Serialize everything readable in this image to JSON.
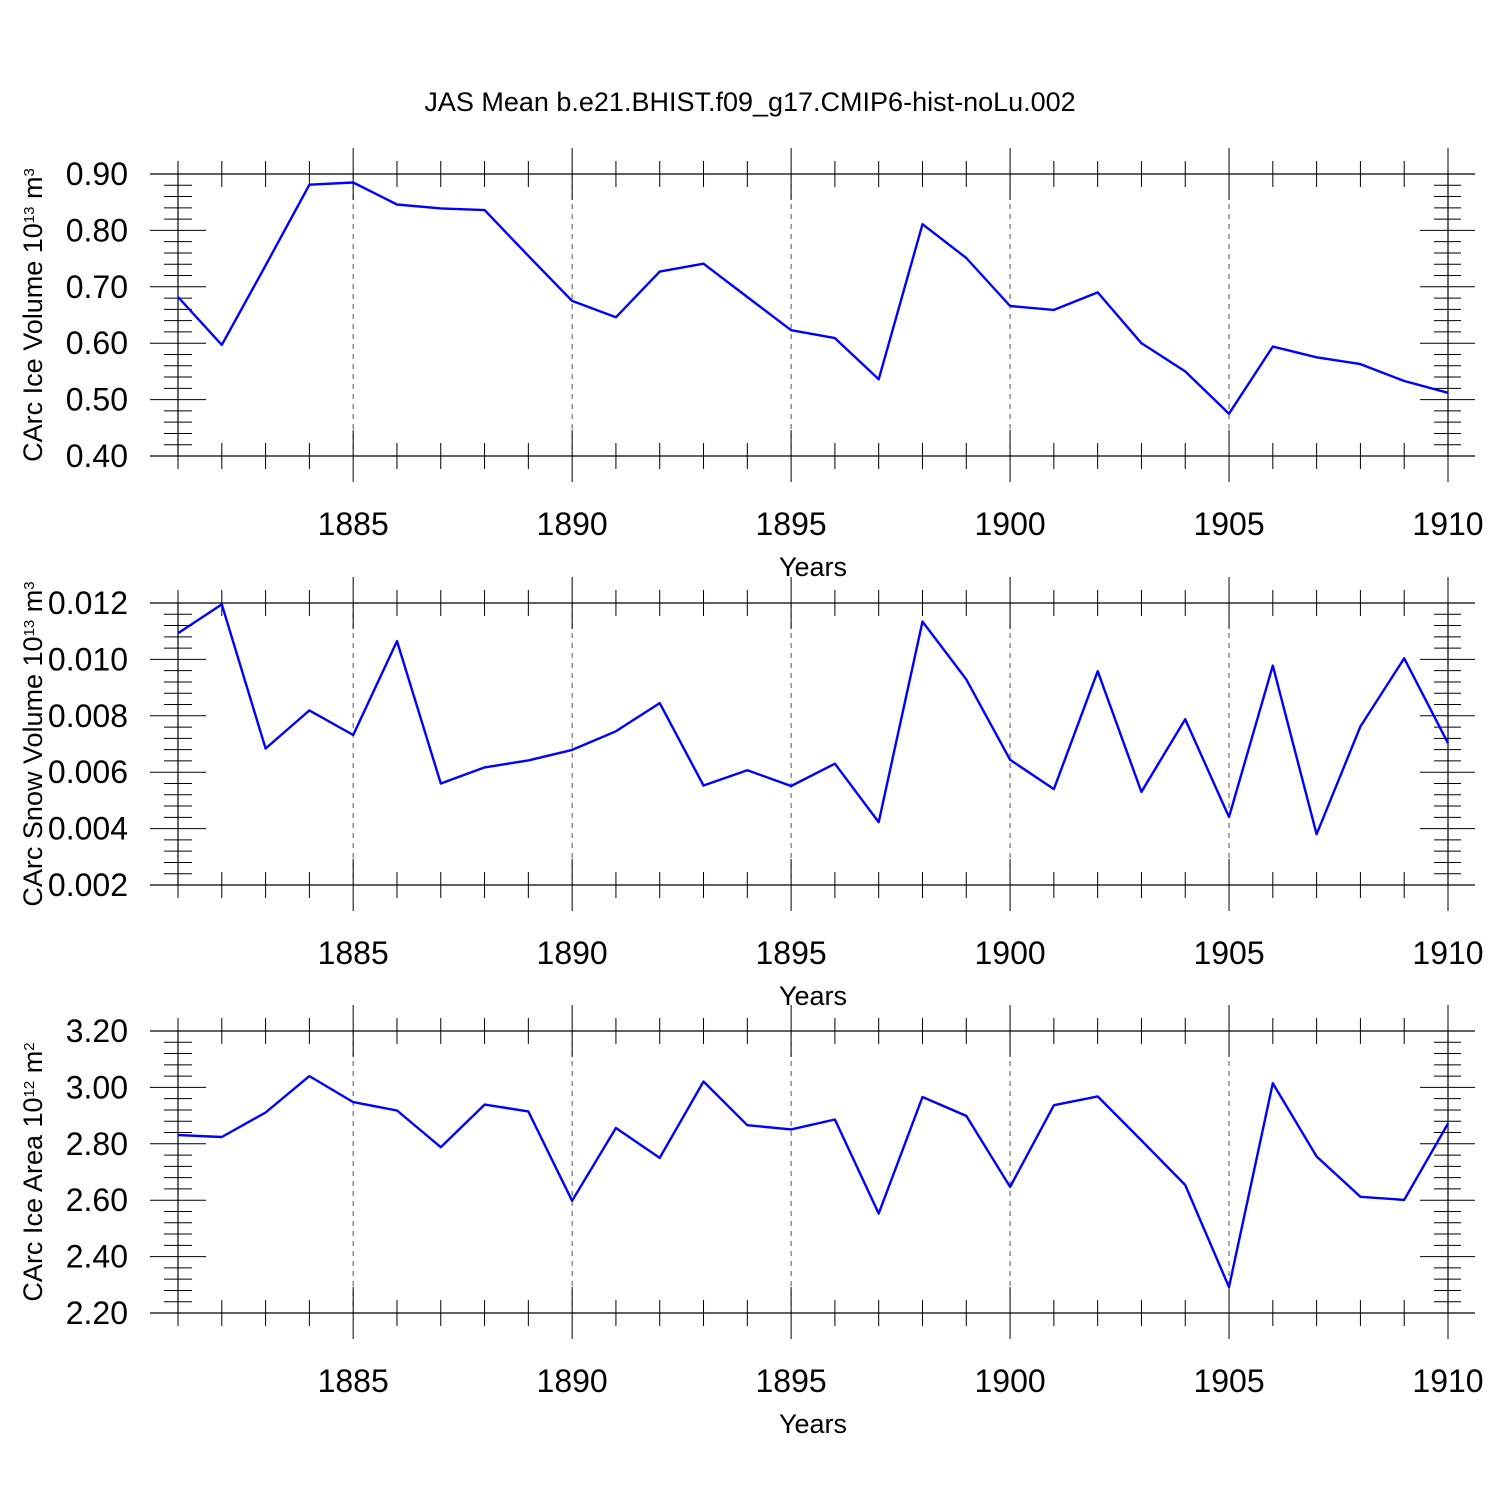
{
  "title": "JAS Mean b.e21.BHIST.f09_g17.CMIP6-hist-noLu.002",
  "colors": {
    "line": "#0000ff",
    "axis": "#000000",
    "grid": "#555555"
  },
  "chart_data": [
    {
      "type": "line",
      "ylabel": "CArc Ice Volume 10",
      "ylabel_sup": "13",
      "ylabel_unit": " m",
      "ylabel_unit_sup": "3",
      "xlabel": "Years",
      "xlim": [
        1881,
        1910
      ],
      "ylim": [
        0.4,
        0.9
      ],
      "xticks": [
        "1885",
        "1890",
        "1895",
        "1900",
        "1905",
        "1910"
      ],
      "yticks": [
        "0.40",
        "0.50",
        "0.60",
        "0.70",
        "0.80",
        "0.90"
      ],
      "x": [
        1881,
        1882,
        1883,
        1884,
        1885,
        1886,
        1887,
        1888,
        1889,
        1890,
        1891,
        1892,
        1893,
        1894,
        1895,
        1896,
        1897,
        1898,
        1899,
        1900,
        1901,
        1902,
        1903,
        1904,
        1905,
        1906,
        1907,
        1908,
        1909,
        1910
      ],
      "y": [
        0.682,
        0.597,
        0.738,
        0.881,
        0.885,
        0.846,
        0.839,
        0.836,
        0.755,
        0.675,
        0.646,
        0.727,
        0.741,
        0.682,
        0.623,
        0.609,
        0.536,
        0.811,
        0.751,
        0.666,
        0.659,
        0.69,
        0.6,
        0.55,
        0.475,
        0.594,
        0.575,
        0.563,
        0.533,
        0.512
      ]
    },
    {
      "type": "line",
      "ylabel": "CArc Snow Volume 10",
      "ylabel_sup": "13",
      "ylabel_unit": " m",
      "ylabel_unit_sup": "3",
      "xlabel": "Years",
      "xlim": [
        1881,
        1910
      ],
      "ylim": [
        0.002,
        0.012
      ],
      "xticks": [
        "1885",
        "1890",
        "1895",
        "1900",
        "1905",
        "1910"
      ],
      "yticks": [
        "0.002",
        "0.004",
        "0.006",
        "0.008",
        "0.010",
        "0.012"
      ],
      "x": [
        1881,
        1882,
        1883,
        1884,
        1885,
        1886,
        1887,
        1888,
        1889,
        1890,
        1891,
        1892,
        1893,
        1894,
        1895,
        1896,
        1897,
        1898,
        1899,
        1900,
        1901,
        1902,
        1903,
        1904,
        1905,
        1906,
        1907,
        1908,
        1909,
        1910
      ],
      "y": [
        0.01093,
        0.01195,
        0.00684,
        0.00819,
        0.00732,
        0.01065,
        0.0056,
        0.00617,
        0.00642,
        0.00679,
        0.00745,
        0.00845,
        0.00553,
        0.00607,
        0.00551,
        0.0063,
        0.00423,
        0.01134,
        0.00929,
        0.00644,
        0.0054,
        0.00958,
        0.0053,
        0.00788,
        0.00441,
        0.00978,
        0.0038,
        0.00762,
        0.01004,
        0.00703
      ]
    },
    {
      "type": "line",
      "ylabel": "CArc Ice Area 10",
      "ylabel_sup": "12",
      "ylabel_unit": " m",
      "ylabel_unit_sup": "2",
      "xlabel": "Years",
      "xlim": [
        1881,
        1910
      ],
      "ylim": [
        2.2,
        3.2
      ],
      "xticks": [
        "1885",
        "1890",
        "1895",
        "1900",
        "1905",
        "1910"
      ],
      "yticks": [
        "2.20",
        "2.40",
        "2.60",
        "2.80",
        "3.00",
        "3.20"
      ],
      "x": [
        1881,
        1882,
        1883,
        1884,
        1885,
        1886,
        1887,
        1888,
        1889,
        1890,
        1891,
        1892,
        1893,
        1894,
        1895,
        1896,
        1897,
        1898,
        1899,
        1900,
        1901,
        1902,
        1903,
        1904,
        1905,
        1906,
        1907,
        1908,
        1909,
        1910
      ],
      "y": [
        2.831,
        2.824,
        2.911,
        3.04,
        2.948,
        2.918,
        2.788,
        2.939,
        2.915,
        2.598,
        2.856,
        2.75,
        3.021,
        2.866,
        2.851,
        2.886,
        2.553,
        2.966,
        2.899,
        2.647,
        2.937,
        2.968,
        2.812,
        2.654,
        2.292,
        3.015,
        2.755,
        2.612,
        2.601,
        2.872
      ]
    }
  ]
}
